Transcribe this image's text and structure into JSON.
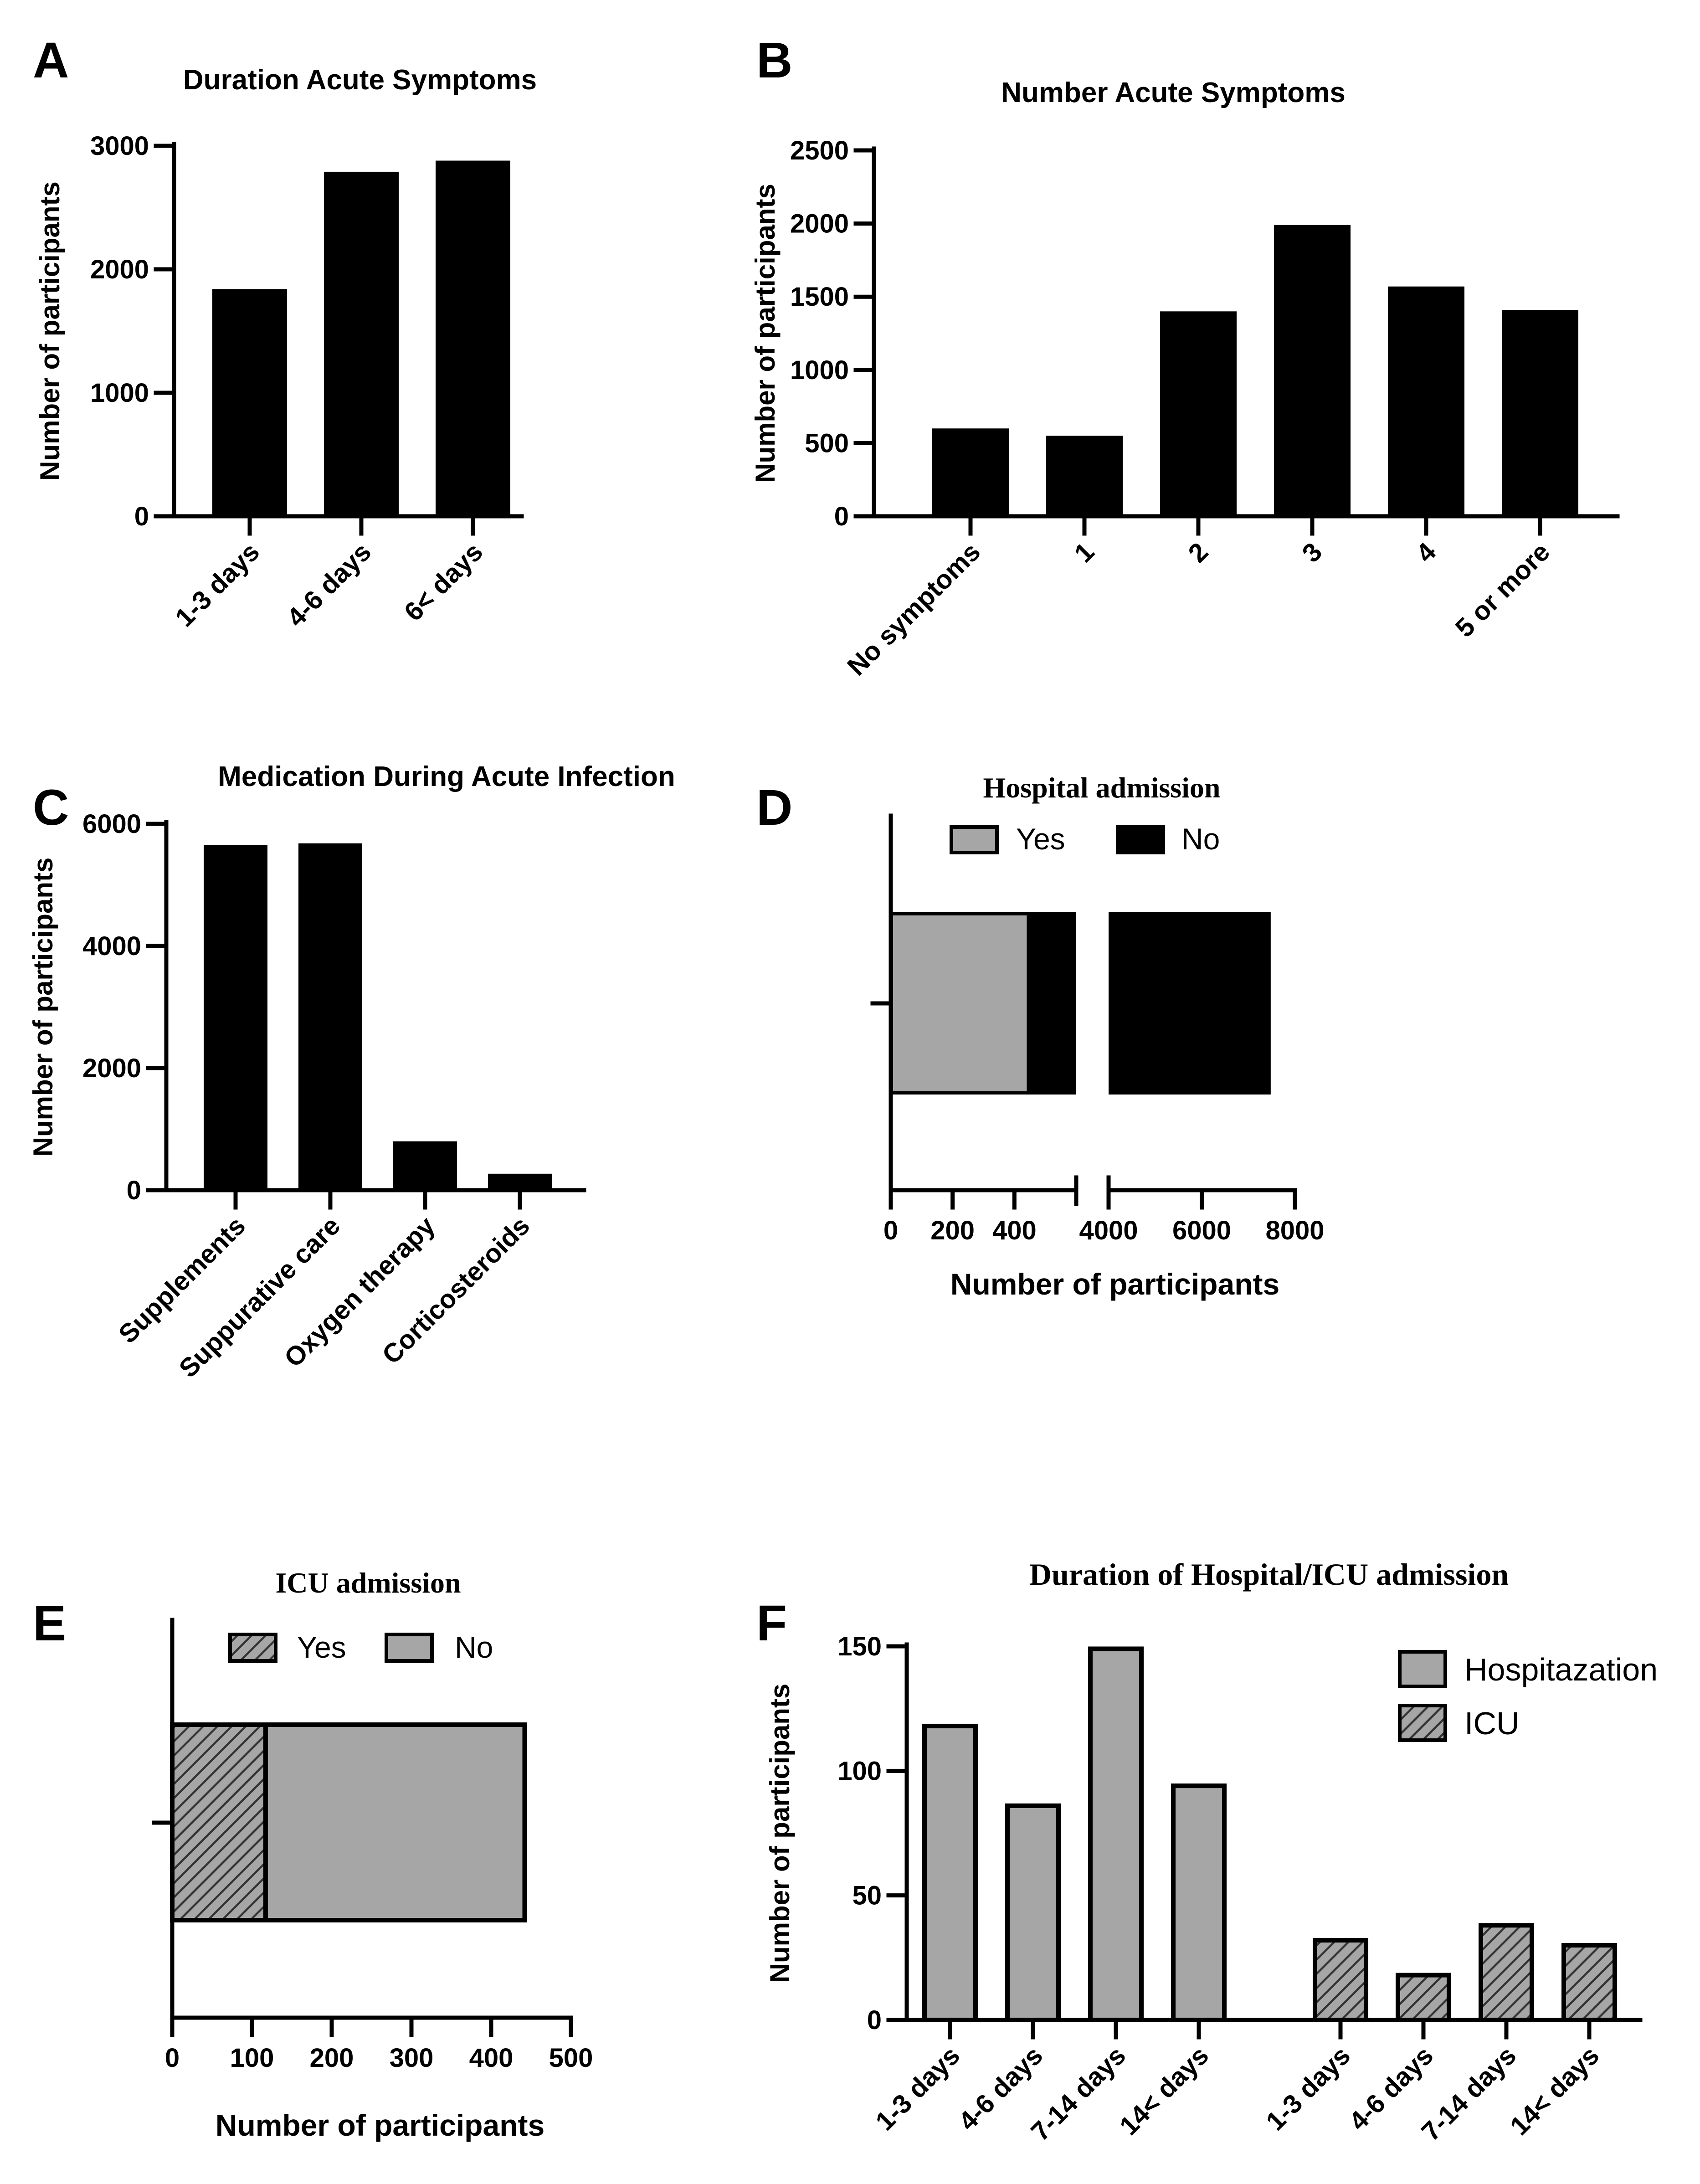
{
  "colors": {
    "bar_black": "#000000",
    "bar_gray": "#a6a6a6",
    "hatch_stroke": "#444444",
    "axis": "#000000",
    "background": "#ffffff"
  },
  "chart_data": [
    {
      "panel": "A",
      "type": "bar",
      "title": "Duration Acute Symptoms",
      "xlabel": "",
      "ylabel": "Number of participants",
      "categories": [
        "1-3 days",
        "4-6 days",
        "6< days"
      ],
      "values": [
        1840,
        2790,
        2880
      ],
      "ylim": [
        0,
        3000
      ],
      "yticks": [
        0,
        1000,
        2000,
        3000
      ],
      "ytick_labels": [
        "0",
        "1000",
        "2000",
        "3000"
      ],
      "grid": false
    },
    {
      "panel": "B",
      "type": "bar",
      "title": "Number Acute Symptoms",
      "xlabel": "",
      "ylabel": "Number of participants",
      "categories": [
        "No symptoms",
        "1",
        "2",
        "3",
        "4",
        "5 or more"
      ],
      "values": [
        600,
        550,
        1400,
        1990,
        1570,
        1410
      ],
      "ylim": [
        0,
        2500
      ],
      "yticks": [
        0,
        500,
        1000,
        1500,
        2000,
        2500
      ],
      "ytick_labels": [
        "0",
        "500",
        "1000",
        "1500",
        "2000",
        "2500"
      ],
      "grid": false
    },
    {
      "panel": "C",
      "type": "bar",
      "title": "Medication During Acute Infection",
      "xlabel": "",
      "ylabel": "Number of participants",
      "categories": [
        "Supplements",
        "Suppurative care",
        "Oxygen therapy",
        "Corticosteroids"
      ],
      "values": [
        5650,
        5680,
        800,
        270
      ],
      "ylim": [
        0,
        6000
      ],
      "yticks": [
        0,
        2000,
        4000,
        6000
      ],
      "ytick_labels": [
        "0",
        "2000",
        "4000",
        "6000"
      ],
      "grid": false
    },
    {
      "panel": "D",
      "type": "bar",
      "orientation": "horizontal",
      "stacked": true,
      "broken_axis": true,
      "title": "Hospital admission",
      "xlabel": "Number of participants",
      "ylabel": "",
      "legend": [
        {
          "name": "Yes",
          "color": "#a6a6a6"
        },
        {
          "name": "No",
          "color": "#000000"
        }
      ],
      "legend_position": "top",
      "series": [
        {
          "name": "Yes",
          "values": [
            440
          ]
        },
        {
          "name": "No",
          "values": [
            7040
          ]
        }
      ],
      "total": 7480,
      "xlim_segment_1": [
        0,
        600
      ],
      "xlim_segment_2": [
        4000,
        8000
      ],
      "xticks_segment_1": [
        0,
        200,
        400
      ],
      "xticks_segment_2": [
        4000,
        6000,
        8000
      ],
      "xtick_labels": [
        "0",
        "200",
        "400",
        "4000",
        "6000",
        "8000"
      ]
    },
    {
      "panel": "E",
      "type": "bar",
      "orientation": "horizontal",
      "stacked": true,
      "title": "ICU admission",
      "xlabel": "Number of participants",
      "ylabel": "",
      "legend": [
        {
          "name": "Yes",
          "pattern": "hatched"
        },
        {
          "name": "No",
          "color": "#a6a6a6"
        }
      ],
      "legend_position": "top",
      "series": [
        {
          "name": "Yes",
          "values": [
            117
          ]
        },
        {
          "name": "No",
          "values": [
            325
          ]
        }
      ],
      "total": 442,
      "xlim": [
        0,
        500
      ],
      "xticks": [
        0,
        100,
        200,
        300,
        400,
        500
      ],
      "xtick_labels": [
        "0",
        "100",
        "200",
        "300",
        "400",
        "500"
      ]
    },
    {
      "panel": "F",
      "type": "bar",
      "title": "Duration of Hospital/ICU admission",
      "xlabel": "",
      "ylabel": "Number of participants",
      "categories": [
        "1-3 days",
        "4-6 days",
        "7-14 days",
        "14< days"
      ],
      "series": [
        {
          "name": "Hospitazation",
          "values": [
            118,
            86,
            149,
            94
          ]
        },
        {
          "name": "ICU",
          "values": [
            32,
            18,
            38,
            30
          ]
        }
      ],
      "legend_position": "top-right",
      "ylim": [
        0,
        150
      ],
      "yticks": [
        0,
        50,
        100,
        150
      ],
      "ytick_labels": [
        "0",
        "50",
        "100",
        "150"
      ],
      "grid": false
    }
  ]
}
